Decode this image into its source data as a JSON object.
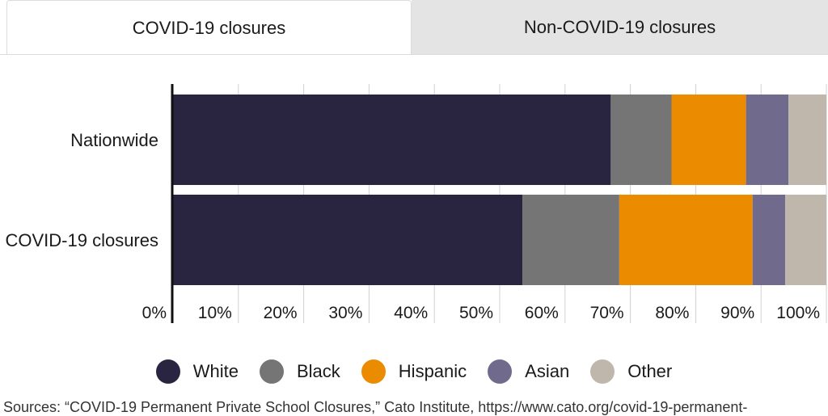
{
  "tabs": [
    {
      "label": "COVID-19 closures",
      "active": true
    },
    {
      "label": "Non-COVID-19 closures",
      "active": false
    }
  ],
  "colors": {
    "White": "#292440",
    "Black": "#757575",
    "Hispanic": "#eb8c00",
    "Asian": "#706a8c",
    "Other": "#bfb7ac",
    "grid": "#d0d0d0",
    "axis": "#111111"
  },
  "chart_data": {
    "type": "bar",
    "orientation": "horizontal",
    "stacked": true,
    "categories": [
      "Nationwide",
      "COVID-19 closures"
    ],
    "series": [
      {
        "name": "White",
        "values": [
          67,
          53.5
        ]
      },
      {
        "name": "Black",
        "values": [
          9.3,
          14.8
        ]
      },
      {
        "name": "Hispanic",
        "values": [
          11.4,
          20.4
        ]
      },
      {
        "name": "Asian",
        "values": [
          6.5,
          5.0
        ]
      },
      {
        "name": "Other",
        "values": [
          5.8,
          6.3
        ]
      }
    ],
    "x_ticks": [
      "0%",
      "10%",
      "20%",
      "30%",
      "40%",
      "50%",
      "60%",
      "70%",
      "80%",
      "90%",
      "100%"
    ],
    "xlim": [
      0,
      100
    ],
    "grid": true,
    "legend_position": "bottom"
  },
  "legend": [
    {
      "label": "White"
    },
    {
      "label": "Black"
    },
    {
      "label": "Hispanic"
    },
    {
      "label": "Asian"
    },
    {
      "label": "Other"
    }
  ],
  "source": "Sources: “COVID-19 Permanent Private School Closures,” Cato Institute, https://www.cato.org/covid-19-permanent-"
}
